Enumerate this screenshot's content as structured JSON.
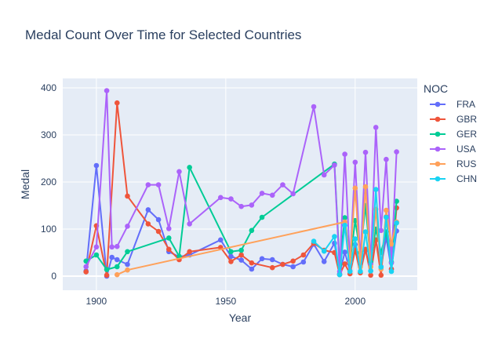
{
  "chart_data": {
    "type": "line",
    "title": "Medal Count Over Time for Selected Countries",
    "xlabel": "Year",
    "ylabel": "Medal",
    "xlim": [
      1887,
      2024
    ],
    "ylim": [
      -30,
      420
    ],
    "xticks": [
      1900,
      1950,
      2000
    ],
    "yticks": [
      0,
      100,
      200,
      300,
      400
    ],
    "grid": true,
    "legend_title": "NOC",
    "legend_position": "right",
    "series": [
      {
        "name": "FRA",
        "color": "#636efa",
        "points": [
          [
            1896,
            11
          ],
          [
            1900,
            235
          ],
          [
            1904,
            0
          ],
          [
            1906,
            40
          ],
          [
            1908,
            35
          ],
          [
            1912,
            25
          ],
          [
            1920,
            141
          ],
          [
            1924,
            120
          ],
          [
            1928,
            52
          ],
          [
            1932,
            41
          ],
          [
            1936,
            45
          ],
          [
            1948,
            77
          ],
          [
            1952,
            42
          ],
          [
            1956,
            34
          ],
          [
            1960,
            15
          ],
          [
            1964,
            37
          ],
          [
            1968,
            35
          ],
          [
            1972,
            25
          ],
          [
            1976,
            20
          ],
          [
            1980,
            30
          ],
          [
            1984,
            68
          ],
          [
            1988,
            31
          ],
          [
            1992,
            70
          ],
          [
            1994,
            5
          ],
          [
            1996,
            51
          ],
          [
            1998,
            11
          ],
          [
            2000,
            67
          ],
          [
            2002,
            22
          ],
          [
            2004,
            55
          ],
          [
            2006,
            11
          ],
          [
            2008,
            77
          ],
          [
            2010,
            20
          ],
          [
            2012,
            82
          ],
          [
            2014,
            15
          ],
          [
            2016,
            96
          ]
        ]
      },
      {
        "name": "GBR",
        "color": "#ef553b",
        "points": [
          [
            1896,
            9
          ],
          [
            1900,
            107
          ],
          [
            1904,
            2
          ],
          [
            1908,
            368
          ],
          [
            1912,
            170
          ],
          [
            1920,
            111
          ],
          [
            1924,
            95
          ],
          [
            1928,
            57
          ],
          [
            1932,
            35
          ],
          [
            1936,
            52
          ],
          [
            1948,
            61
          ],
          [
            1952,
            31
          ],
          [
            1956,
            45
          ],
          [
            1960,
            28
          ],
          [
            1968,
            18
          ],
          [
            1972,
            25
          ],
          [
            1976,
            32
          ],
          [
            1980,
            45
          ],
          [
            1984,
            70
          ],
          [
            1988,
            55
          ],
          [
            1992,
            50
          ],
          [
            1994,
            3
          ],
          [
            1996,
            26
          ],
          [
            1998,
            5
          ],
          [
            2000,
            55
          ],
          [
            2002,
            7
          ],
          [
            2004,
            57
          ],
          [
            2006,
            2
          ],
          [
            2008,
            77
          ],
          [
            2010,
            2
          ],
          [
            2012,
            126
          ],
          [
            2014,
            15
          ],
          [
            2016,
            145
          ]
        ]
      },
      {
        "name": "GER",
        "color": "#00cc96",
        "points": [
          [
            1896,
            32
          ],
          [
            1900,
            45
          ],
          [
            1904,
            14
          ],
          [
            1908,
            20
          ],
          [
            1912,
            52
          ],
          [
            1928,
            81
          ],
          [
            1932,
            42
          ],
          [
            1936,
            231
          ],
          [
            1952,
            52
          ],
          [
            1956,
            55
          ],
          [
            1960,
            97
          ],
          [
            1964,
            125
          ],
          [
            1992,
            238
          ],
          [
            1994,
            25
          ],
          [
            1996,
            124
          ],
          [
            1998,
            30
          ],
          [
            2000,
            118
          ],
          [
            2002,
            50
          ],
          [
            2004,
            150
          ],
          [
            2006,
            30
          ],
          [
            2008,
            100
          ],
          [
            2010,
            50
          ],
          [
            2012,
            94
          ],
          [
            2014,
            30
          ],
          [
            2016,
            159
          ]
        ]
      },
      {
        "name": "USA",
        "color": "#ab63fa",
        "points": [
          [
            1896,
            20
          ],
          [
            1900,
            62
          ],
          [
            1904,
            394
          ],
          [
            1906,
            62
          ],
          [
            1908,
            63
          ],
          [
            1912,
            106
          ],
          [
            1920,
            194
          ],
          [
            1924,
            194
          ],
          [
            1928,
            101
          ],
          [
            1932,
            222
          ],
          [
            1936,
            111
          ],
          [
            1948,
            167
          ],
          [
            1952,
            164
          ],
          [
            1956,
            148
          ],
          [
            1960,
            151
          ],
          [
            1964,
            176
          ],
          [
            1968,
            172
          ],
          [
            1972,
            194
          ],
          [
            1976,
            175
          ],
          [
            1984,
            360
          ],
          [
            1988,
            215
          ],
          [
            1992,
            236
          ],
          [
            1994,
            10
          ],
          [
            1996,
            259
          ],
          [
            1998,
            30
          ],
          [
            2000,
            242
          ],
          [
            2002,
            34
          ],
          [
            2004,
            263
          ],
          [
            2006,
            25
          ],
          [
            2008,
            316
          ],
          [
            2010,
            97
          ],
          [
            2012,
            248
          ],
          [
            2014,
            28
          ],
          [
            2016,
            264
          ]
        ]
      },
      {
        "name": "RUS",
        "color": "#ffa15a",
        "points": [
          [
            1908,
            3
          ],
          [
            1912,
            13
          ],
          [
            1996,
            115
          ],
          [
            1998,
            30
          ],
          [
            2000,
            187
          ],
          [
            2002,
            20
          ],
          [
            2004,
            190
          ],
          [
            2006,
            20
          ],
          [
            2008,
            142
          ],
          [
            2010,
            15
          ],
          [
            2012,
            140
          ],
          [
            2014,
            68
          ],
          [
            2016,
            115
          ]
        ]
      },
      {
        "name": "CHN",
        "color": "#19d3f3",
        "points": [
          [
            1984,
            74
          ],
          [
            1988,
            53
          ],
          [
            1992,
            84
          ],
          [
            1994,
            3
          ],
          [
            1996,
            108
          ],
          [
            1998,
            10
          ],
          [
            2000,
            79
          ],
          [
            2002,
            10
          ],
          [
            2004,
            94
          ],
          [
            2006,
            11
          ],
          [
            2008,
            184
          ],
          [
            2010,
            19
          ],
          [
            2012,
            125
          ],
          [
            2014,
            10
          ],
          [
            2016,
            113
          ]
        ]
      }
    ]
  }
}
